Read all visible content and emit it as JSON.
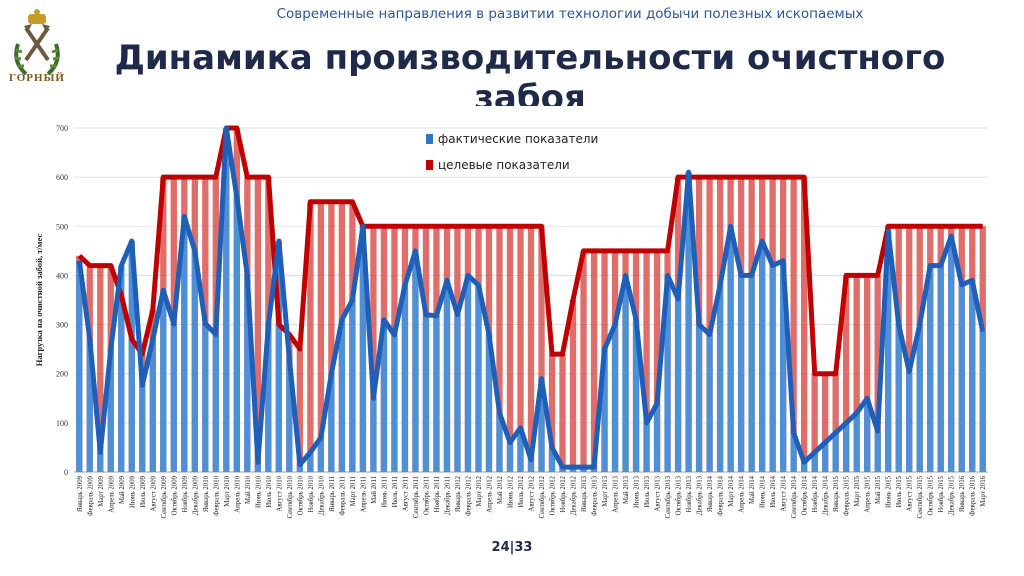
{
  "header": {
    "subtitle": "Современные направления в развитии технологии добычи полезных ископаемых",
    "title": "Динамика производительности очистного забоя",
    "logo_text": "ГОРНЫЙ"
  },
  "footer": {
    "page": "24|33"
  },
  "colors": {
    "fact": "#2e75c8",
    "target": "#c00000",
    "bar_target": "#d9534f",
    "bar_fact": "#4f8fd6"
  },
  "chart_data": {
    "type": "bar",
    "ylabel": "Нагрузка на очистной забой, т/мес",
    "ylim": [
      0,
      700
    ],
    "yticks": [
      0,
      100,
      200,
      300,
      400,
      500,
      600,
      700
    ],
    "grid": true,
    "legend_position": "top-center",
    "categories": [
      "Январь 2009",
      "Февраль 2009",
      "Март 2009",
      "Апрель 2009",
      "Май 2009",
      "Июнь 2009",
      "Июль 2009",
      "Август 2009",
      "Сентябрь 2009",
      "Октябрь 2009",
      "Ноябрь 2009",
      "Декабрь 2009",
      "Январь 2010",
      "Февраль 2010",
      "Март 2010",
      "Апрель 2010",
      "Май 2010",
      "Июнь 2010",
      "Июль 2010",
      "Август 2010",
      "Сентябрь 2010",
      "Октябрь 2010",
      "Ноябрь 2010",
      "Декабрь 2010",
      "Январь 2011",
      "Февраль 2011",
      "Март 2011",
      "Апрель 2011",
      "Май 2011",
      "Июнь 2011",
      "Июль 2011",
      "Август 2011",
      "Сентябрь 2011",
      "Октябрь 2011",
      "Ноябрь 2011",
      "Декабрь 2011",
      "Январь 2012",
      "Февраль 2012",
      "Март 2012",
      "Апрель 2012",
      "Май 2012",
      "Июнь 2012",
      "Июль 2012",
      "Август 2012",
      "Сентябрь 2012",
      "Октябрь 2012",
      "Ноябрь 2012",
      "Декабрь 2012",
      "Январь 2013",
      "Февраль 2013",
      "Март 2013",
      "Апрель 2013",
      "Май 2013",
      "Июнь 2013",
      "Июль 2013",
      "Август 2013",
      "Сентябрь 2013",
      "Октябрь 2013",
      "Ноябрь 2013",
      "Декабрь 2013",
      "Январь 2014",
      "Февраль 2014",
      "Март 2014",
      "Апрель 2014",
      "Май 2014",
      "Июнь 2014",
      "Июль 2014",
      "Август 2014",
      "Сентябрь 2014",
      "Октябрь 2014",
      "Ноябрь 2014",
      "Декабрь 2014",
      "Январь 2015",
      "Февраль 2015",
      "Март 2015",
      "Апрель 2015",
      "Май 2015",
      "Июнь 2015",
      "Июль 2015",
      "Август 2015",
      "Сентябрь 2015",
      "Октябрь 2015",
      "Ноябрь 2015",
      "Декабрь 2015",
      "Январь 2016",
      "Февраль 2016",
      "Март 2016"
    ],
    "series": [
      {
        "name": "фактические показатели",
        "values": [
          430,
          270,
          40,
          250,
          420,
          470,
          176,
          270,
          370,
          301,
          520,
          450,
          302,
          280,
          700,
          560,
          400,
          20,
          300,
          470,
          230,
          15,
          40,
          70,
          200,
          310,
          350,
          500,
          150,
          310,
          279,
          380,
          450,
          320,
          318,
          390,
          320,
          400,
          380,
          280,
          120,
          60,
          90,
          25,
          190,
          50,
          10,
          10,
          10,
          10,
          250,
          300,
          400,
          310,
          100,
          140,
          400,
          352,
          610,
          300,
          280,
          380,
          500,
          400,
          400,
          470,
          420,
          430,
          80,
          20,
          40,
          60,
          80,
          100,
          120,
          150,
          83,
          490,
          300,
          204,
          300,
          420,
          420,
          480,
          381,
          390,
          286
        ]
      },
      {
        "name": "целевые показатели",
        "values": [
          440,
          420,
          420,
          420,
          360,
          270,
          240,
          330,
          600,
          600,
          600,
          600,
          600,
          600,
          700,
          700,
          600,
          600,
          600,
          300,
          280,
          250,
          550,
          550,
          550,
          550,
          550,
          500,
          500,
          500,
          500,
          500,
          500,
          500,
          500,
          500,
          500,
          500,
          500,
          500,
          500,
          500,
          500,
          500,
          500,
          240,
          240,
          350,
          450,
          450,
          450,
          450,
          450,
          450,
          450,
          450,
          450,
          600,
          600,
          600,
          600,
          600,
          600,
          600,
          600,
          600,
          600,
          600,
          600,
          600,
          200,
          200,
          200,
          400,
          400,
          400,
          400,
          500,
          500,
          500,
          500,
          500,
          500,
          500,
          500,
          500,
          500
        ]
      }
    ]
  }
}
